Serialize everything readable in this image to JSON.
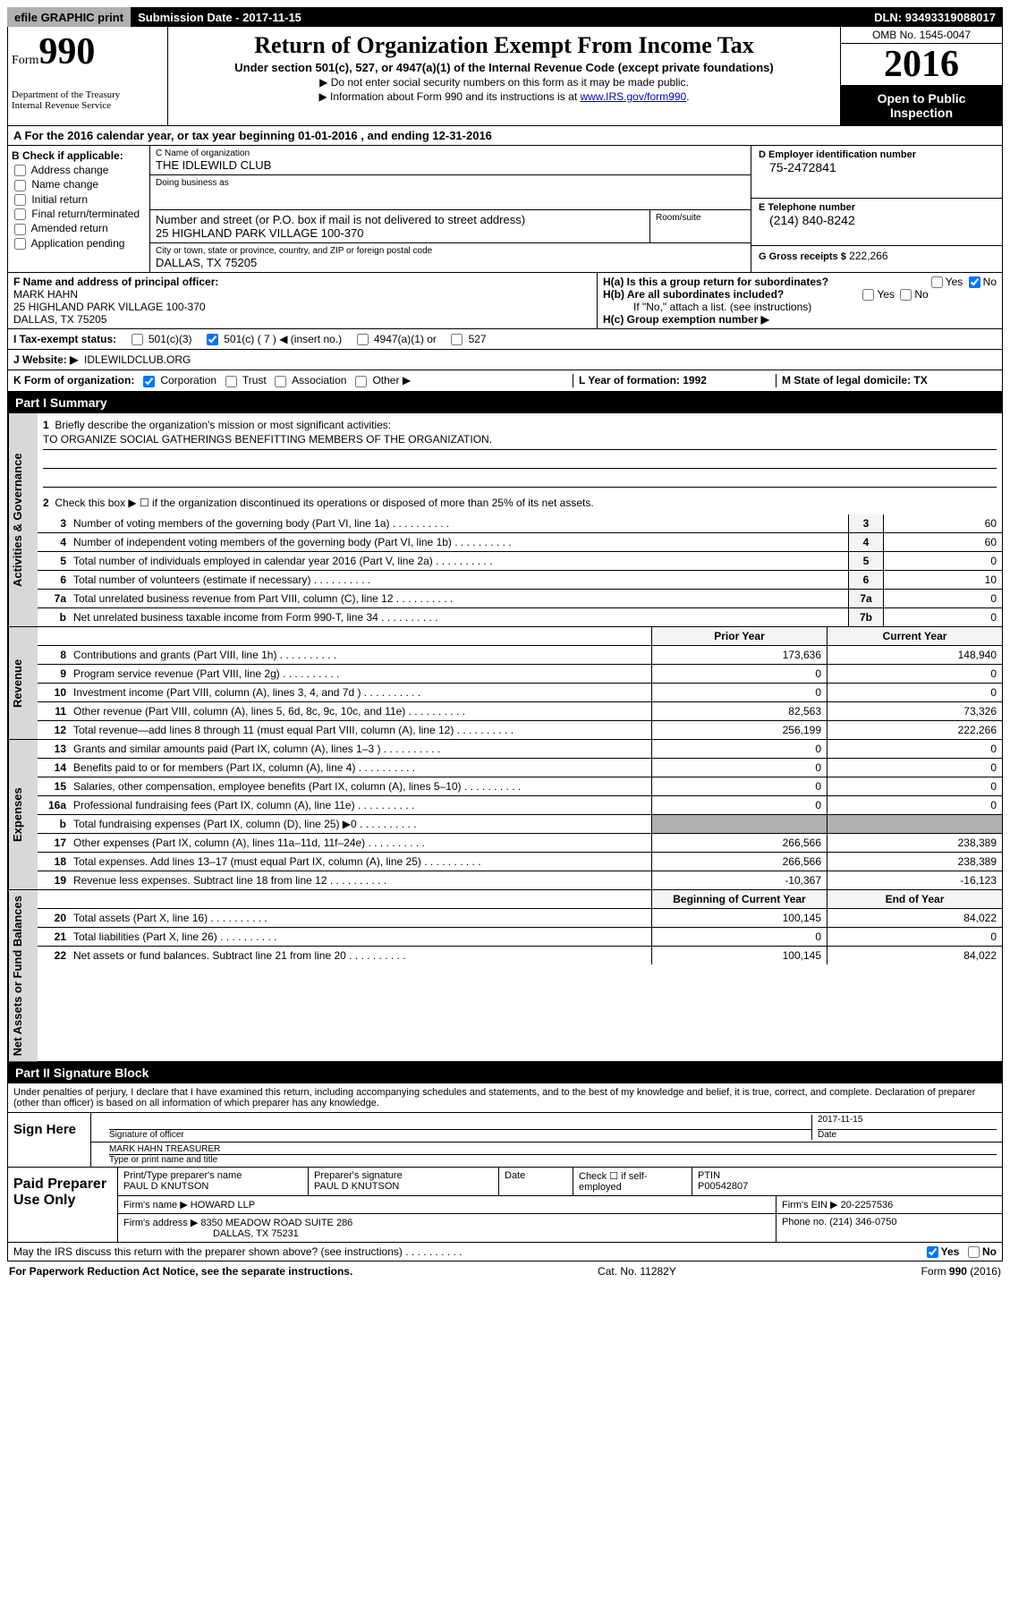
{
  "topbar": {
    "efile": "efile GRAPHIC print",
    "subdate_label": "Submission Date -",
    "subdate": "2017-11-15",
    "dln_label": "DLN:",
    "dln": "93493319088017"
  },
  "header": {
    "form_small": "Form",
    "form_big": "990",
    "dept1": "Department of the Treasury",
    "dept2": "Internal Revenue Service",
    "title": "Return of Organization Exempt From Income Tax",
    "subtitle": "Under section 501(c), 527, or 4947(a)(1) of the Internal Revenue Code (except private foundations)",
    "arrow1": "▶ Do not enter social security numbers on this form as it may be made public.",
    "arrow2_pre": "▶ Information about Form 990 and its instructions is at ",
    "arrow2_link": "www.IRS.gov/form990",
    "omb": "OMB No. 1545-0047",
    "year": "2016",
    "inspection": "Open to Public Inspection"
  },
  "section_a": "A  For the 2016 calendar year, or tax year beginning 01-01-2016   , and ending 12-31-2016",
  "col_b": {
    "label": "B Check if applicable:",
    "opts": [
      "Address change",
      "Name change",
      "Initial return",
      "Final return/terminated",
      "Amended return",
      "Application pending"
    ]
  },
  "col_c": {
    "name_lbl": "C Name of organization",
    "name": "THE IDLEWILD CLUB",
    "dba_lbl": "Doing business as",
    "dba": "",
    "street_lbl": "Number and street (or P.O. box if mail is not delivered to street address)",
    "street": "25 HIGHLAND PARK VILLAGE 100-370",
    "room_lbl": "Room/suite",
    "city_lbl": "City or town, state or province, country, and ZIP or foreign postal code",
    "city": "DALLAS, TX  75205"
  },
  "col_d": {
    "ein_lbl": "D Employer identification number",
    "ein": "75-2472841",
    "tel_lbl": "E Telephone number",
    "tel": "(214) 840-8242",
    "gross_lbl": "G Gross receipts $",
    "gross": "222,266"
  },
  "f": {
    "lbl": "F Name and address of principal officer:",
    "name": "MARK HAHN",
    "addr1": "25 HIGHLAND PARK VILLAGE 100-370",
    "addr2": "DALLAS, TX  75205"
  },
  "h": {
    "a": "H(a)  Is this a group return for subordinates?",
    "b": "H(b)  Are all subordinates included?",
    "note": "If \"No,\" attach a list. (see instructions)",
    "c": "H(c)  Group exemption number ▶",
    "yes": "Yes",
    "no": "No"
  },
  "row_i": {
    "lbl": "I  Tax-exempt status:",
    "o1": "501(c)(3)",
    "o2": "501(c) ( 7 ) ◀ (insert no.)",
    "o3": "4947(a)(1) or",
    "o4": "527"
  },
  "row_j": {
    "lbl": "J  Website: ▶",
    "val": "IDLEWILDCLUB.ORG"
  },
  "row_k": {
    "lbl": "K Form of organization:",
    "o1": "Corporation",
    "o2": "Trust",
    "o3": "Association",
    "o4": "Other ▶"
  },
  "row_lm": {
    "l": "L Year of formation: 1992",
    "m": "M State of legal domicile: TX"
  },
  "part1": {
    "header": "Part I    Summary",
    "vtab1": "Activities & Governance",
    "vtab2": "Revenue",
    "vtab3": "Expenses",
    "vtab4": "Net Assets or Fund Balances",
    "line1_lbl": "Briefly describe the organization's mission or most significant activities:",
    "line1_val": "TO ORGANIZE SOCIAL GATHERINGS BENEFITTING MEMBERS OF THE ORGANIZATION.",
    "line2": "Check this box ▶ ☐  if the organization discontinued its operations or disposed of more than 25% of its net assets.",
    "lines_gov": [
      {
        "n": "3",
        "d": "Number of voting members of the governing body (Part VI, line 1a)",
        "b": "3",
        "v": "60"
      },
      {
        "n": "4",
        "d": "Number of independent voting members of the governing body (Part VI, line 1b)",
        "b": "4",
        "v": "60"
      },
      {
        "n": "5",
        "d": "Total number of individuals employed in calendar year 2016 (Part V, line 2a)",
        "b": "5",
        "v": "0"
      },
      {
        "n": "6",
        "d": "Total number of volunteers (estimate if necessary)",
        "b": "6",
        "v": "10"
      },
      {
        "n": "7a",
        "d": "Total unrelated business revenue from Part VIII, column (C), line 12",
        "b": "7a",
        "v": "0"
      },
      {
        "n": "b",
        "d": "Net unrelated business taxable income from Form 990-T, line 34",
        "b": "7b",
        "v": "0"
      }
    ],
    "col_prior": "Prior Year",
    "col_current": "Current Year",
    "lines_rev": [
      {
        "n": "8",
        "d": "Contributions and grants (Part VIII, line 1h)",
        "p": "173,636",
        "c": "148,940"
      },
      {
        "n": "9",
        "d": "Program service revenue (Part VIII, line 2g)",
        "p": "0",
        "c": "0"
      },
      {
        "n": "10",
        "d": "Investment income (Part VIII, column (A), lines 3, 4, and 7d )",
        "p": "0",
        "c": "0"
      },
      {
        "n": "11",
        "d": "Other revenue (Part VIII, column (A), lines 5, 6d, 8c, 9c, 10c, and 11e)",
        "p": "82,563",
        "c": "73,326"
      },
      {
        "n": "12",
        "d": "Total revenue—add lines 8 through 11 (must equal Part VIII, column (A), line 12)",
        "p": "256,199",
        "c": "222,266"
      }
    ],
    "lines_exp": [
      {
        "n": "13",
        "d": "Grants and similar amounts paid (Part IX, column (A), lines 1–3 )",
        "p": "0",
        "c": "0"
      },
      {
        "n": "14",
        "d": "Benefits paid to or for members (Part IX, column (A), line 4)",
        "p": "0",
        "c": "0"
      },
      {
        "n": "15",
        "d": "Salaries, other compensation, employee benefits (Part IX, column (A), lines 5–10)",
        "p": "0",
        "c": "0"
      },
      {
        "n": "16a",
        "d": "Professional fundraising fees (Part IX, column (A), line 11e)",
        "p": "0",
        "c": "0"
      },
      {
        "n": "b",
        "d": "Total fundraising expenses (Part IX, column (D), line 25) ▶0",
        "p": "",
        "c": "",
        "shaded": true
      },
      {
        "n": "17",
        "d": "Other expenses (Part IX, column (A), lines 11a–11d, 11f–24e)",
        "p": "266,566",
        "c": "238,389"
      },
      {
        "n": "18",
        "d": "Total expenses. Add lines 13–17 (must equal Part IX, column (A), line 25)",
        "p": "266,566",
        "c": "238,389"
      },
      {
        "n": "19",
        "d": "Revenue less expenses. Subtract line 18 from line 12",
        "p": "-10,367",
        "c": "-16,123"
      }
    ],
    "col_begin": "Beginning of Current Year",
    "col_end": "End of Year",
    "lines_net": [
      {
        "n": "20",
        "d": "Total assets (Part X, line 16)",
        "p": "100,145",
        "c": "84,022"
      },
      {
        "n": "21",
        "d": "Total liabilities (Part X, line 26)",
        "p": "0",
        "c": "0"
      },
      {
        "n": "22",
        "d": "Net assets or fund balances. Subtract line 21 from line 20",
        "p": "100,145",
        "c": "84,022"
      }
    ]
  },
  "part2": {
    "header": "Part II    Signature Block",
    "intro": "Under penalties of perjury, I declare that I have examined this return, including accompanying schedules and statements, and to the best of my knowledge and belief, it is true, correct, and complete. Declaration of preparer (other than officer) is based on all information of which preparer has any knowledge.",
    "sign_lbl": "Sign Here",
    "sig_officer_lbl": "Signature of officer",
    "sig_date": "2017-11-15",
    "date_lbl": "Date",
    "name_title": "MARK HAHN TREASURER",
    "name_title_lbl": "Type or print name and title",
    "prep_lbl": "Paid Preparer Use Only",
    "p_name_lbl": "Print/Type preparer's name",
    "p_name": "PAUL D KNUTSON",
    "p_sig_lbl": "Preparer's signature",
    "p_sig": "PAUL D KNUTSON",
    "p_date_lbl": "Date",
    "p_check_lbl": "Check ☐ if self-employed",
    "ptin_lbl": "PTIN",
    "ptin": "P00542807",
    "firm_name_lbl": "Firm's name      ▶",
    "firm_name": "HOWARD LLP",
    "firm_ein_lbl": "Firm's EIN ▶",
    "firm_ein": "20-2257536",
    "firm_addr_lbl": "Firm's address ▶",
    "firm_addr1": "8350 MEADOW ROAD SUITE 286",
    "firm_addr2": "DALLAS, TX  75231",
    "firm_phone_lbl": "Phone no.",
    "firm_phone": "(214) 346-0750"
  },
  "footer": {
    "discuss": "May the IRS discuss this return with the preparer shown above? (see instructions)",
    "yes": "Yes",
    "no": "No",
    "paperwork": "For Paperwork Reduction Act Notice, see the separate instructions.",
    "cat": "Cat. No. 11282Y",
    "form": "Form 990 (2016)"
  }
}
